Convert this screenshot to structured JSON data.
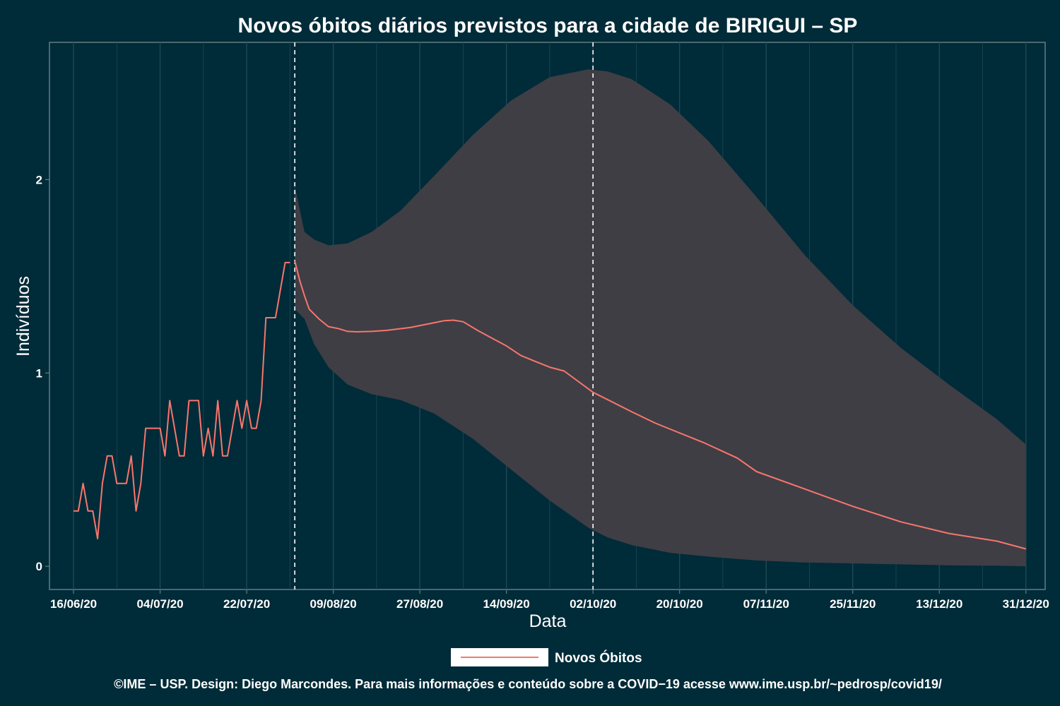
{
  "chart_data": {
    "type": "line",
    "title": "Novos óbitos diários previstos para a cidade de BIRIGUI – SP",
    "xlabel": "Data",
    "ylabel": "Indivíduos",
    "x_ticks": [
      "16/06/20",
      "04/07/20",
      "22/07/20",
      "09/08/20",
      "27/08/20",
      "14/09/20",
      "02/10/20",
      "20/10/20",
      "07/11/20",
      "25/11/20",
      "13/12/20",
      "31/12/20"
    ],
    "y_ticks": [
      "0",
      "1",
      "2"
    ],
    "xlim": [
      "2020-06-11",
      "2021-01-04"
    ],
    "ylim": [
      -0.12,
      2.71
    ],
    "grid": true,
    "legend_position": "bottom",
    "vertical_lines": [
      "2020-08-01",
      "2020-10-02"
    ],
    "colors": {
      "background": "#002b38",
      "line": "#f8766d",
      "band": "#3f3e45",
      "grid": "#1c4a55",
      "vline": "#ffffff"
    },
    "series": [
      {
        "name": "Novos Óbitos",
        "kind": "observed",
        "x": [
          "2020-06-16",
          "2020-06-17",
          "2020-06-18",
          "2020-06-19",
          "2020-06-20",
          "2020-06-21",
          "2020-06-22",
          "2020-06-23",
          "2020-06-24",
          "2020-06-25",
          "2020-06-26",
          "2020-06-27",
          "2020-06-28",
          "2020-06-29",
          "2020-06-30",
          "2020-07-01",
          "2020-07-02",
          "2020-07-03",
          "2020-07-04",
          "2020-07-05",
          "2020-07-06",
          "2020-07-07",
          "2020-07-08",
          "2020-07-09",
          "2020-07-10",
          "2020-07-11",
          "2020-07-12",
          "2020-07-13",
          "2020-07-14",
          "2020-07-15",
          "2020-07-16",
          "2020-07-17",
          "2020-07-18",
          "2020-07-19",
          "2020-07-20",
          "2020-07-21",
          "2020-07-22",
          "2020-07-23",
          "2020-07-24",
          "2020-07-25",
          "2020-07-26",
          "2020-07-27",
          "2020-07-28",
          "2020-07-29",
          "2020-07-30",
          "2020-07-31"
        ],
        "values": [
          0.286,
          0.286,
          0.429,
          0.286,
          0.286,
          0.143,
          0.429,
          0.571,
          0.571,
          0.429,
          0.429,
          0.429,
          0.571,
          0.286,
          0.429,
          0.714,
          0.714,
          0.714,
          0.714,
          0.571,
          0.857,
          0.714,
          0.571,
          0.571,
          0.857,
          0.857,
          0.857,
          0.571,
          0.714,
          0.571,
          0.857,
          0.571,
          0.571,
          0.714,
          0.857,
          0.714,
          0.857,
          0.714,
          0.714,
          0.857,
          1.286,
          1.286,
          1.286,
          1.429,
          1.571,
          1.571
        ]
      },
      {
        "name": "Novos Óbitos",
        "kind": "forecast",
        "x": [
          "2020-08-01",
          "2020-08-02",
          "2020-08-03",
          "2020-08-04",
          "2020-08-06",
          "2020-08-08",
          "2020-08-10",
          "2020-08-12",
          "2020-08-14",
          "2020-08-17",
          "2020-08-20",
          "2020-08-25",
          "2020-08-30",
          "2020-09-01",
          "2020-09-03",
          "2020-09-05",
          "2020-09-08",
          "2020-09-11",
          "2020-09-14",
          "2020-09-17",
          "2020-09-20",
          "2020-09-23",
          "2020-09-26",
          "2020-10-02",
          "2020-10-10",
          "2020-10-15",
          "2020-10-25",
          "2020-11-01",
          "2020-11-05",
          "2020-11-15",
          "2020-11-25",
          "2020-12-05",
          "2020-12-15",
          "2020-12-25",
          "2020-12-31"
        ],
        "values": [
          1.58,
          1.48,
          1.4,
          1.33,
          1.28,
          1.24,
          1.23,
          1.215,
          1.213,
          1.215,
          1.22,
          1.235,
          1.26,
          1.27,
          1.273,
          1.265,
          1.22,
          1.18,
          1.14,
          1.09,
          1.06,
          1.03,
          1.01,
          0.9,
          0.8,
          0.74,
          0.64,
          0.56,
          0.49,
          0.4,
          0.31,
          0.23,
          0.17,
          0.13,
          0.09
        ]
      }
    ],
    "band": {
      "x": [
        "2020-08-01",
        "2020-08-03",
        "2020-08-05",
        "2020-08-08",
        "2020-08-12",
        "2020-08-17",
        "2020-08-23",
        "2020-08-30",
        "2020-09-07",
        "2020-09-15",
        "2020-09-23",
        "2020-10-01",
        "2020-10-05",
        "2020-10-10",
        "2020-10-18",
        "2020-10-26",
        "2020-11-05",
        "2020-11-15",
        "2020-11-25",
        "2020-12-05",
        "2020-12-15",
        "2020-12-25",
        "2020-12-31"
      ],
      "upper": [
        1.97,
        1.73,
        1.69,
        1.66,
        1.67,
        1.73,
        1.84,
        2.02,
        2.23,
        2.41,
        2.53,
        2.57,
        2.56,
        2.52,
        2.39,
        2.2,
        1.91,
        1.61,
        1.35,
        1.13,
        0.94,
        0.76,
        0.63
      ],
      "lower": [
        1.33,
        1.28,
        1.15,
        1.03,
        0.94,
        0.89,
        0.86,
        0.79,
        0.66,
        0.5,
        0.34,
        0.2,
        0.15,
        0.11,
        0.07,
        0.05,
        0.03,
        0.02,
        0.015,
        0.01,
        0.005,
        0.003,
        0.0
      ]
    }
  },
  "caption": "©IME – USP. Design: Diego Marcondes. Para mais informações e conteúdo sobre a COVID−19 acesse www.ime.usp.br/~pedrosp/covid19/"
}
